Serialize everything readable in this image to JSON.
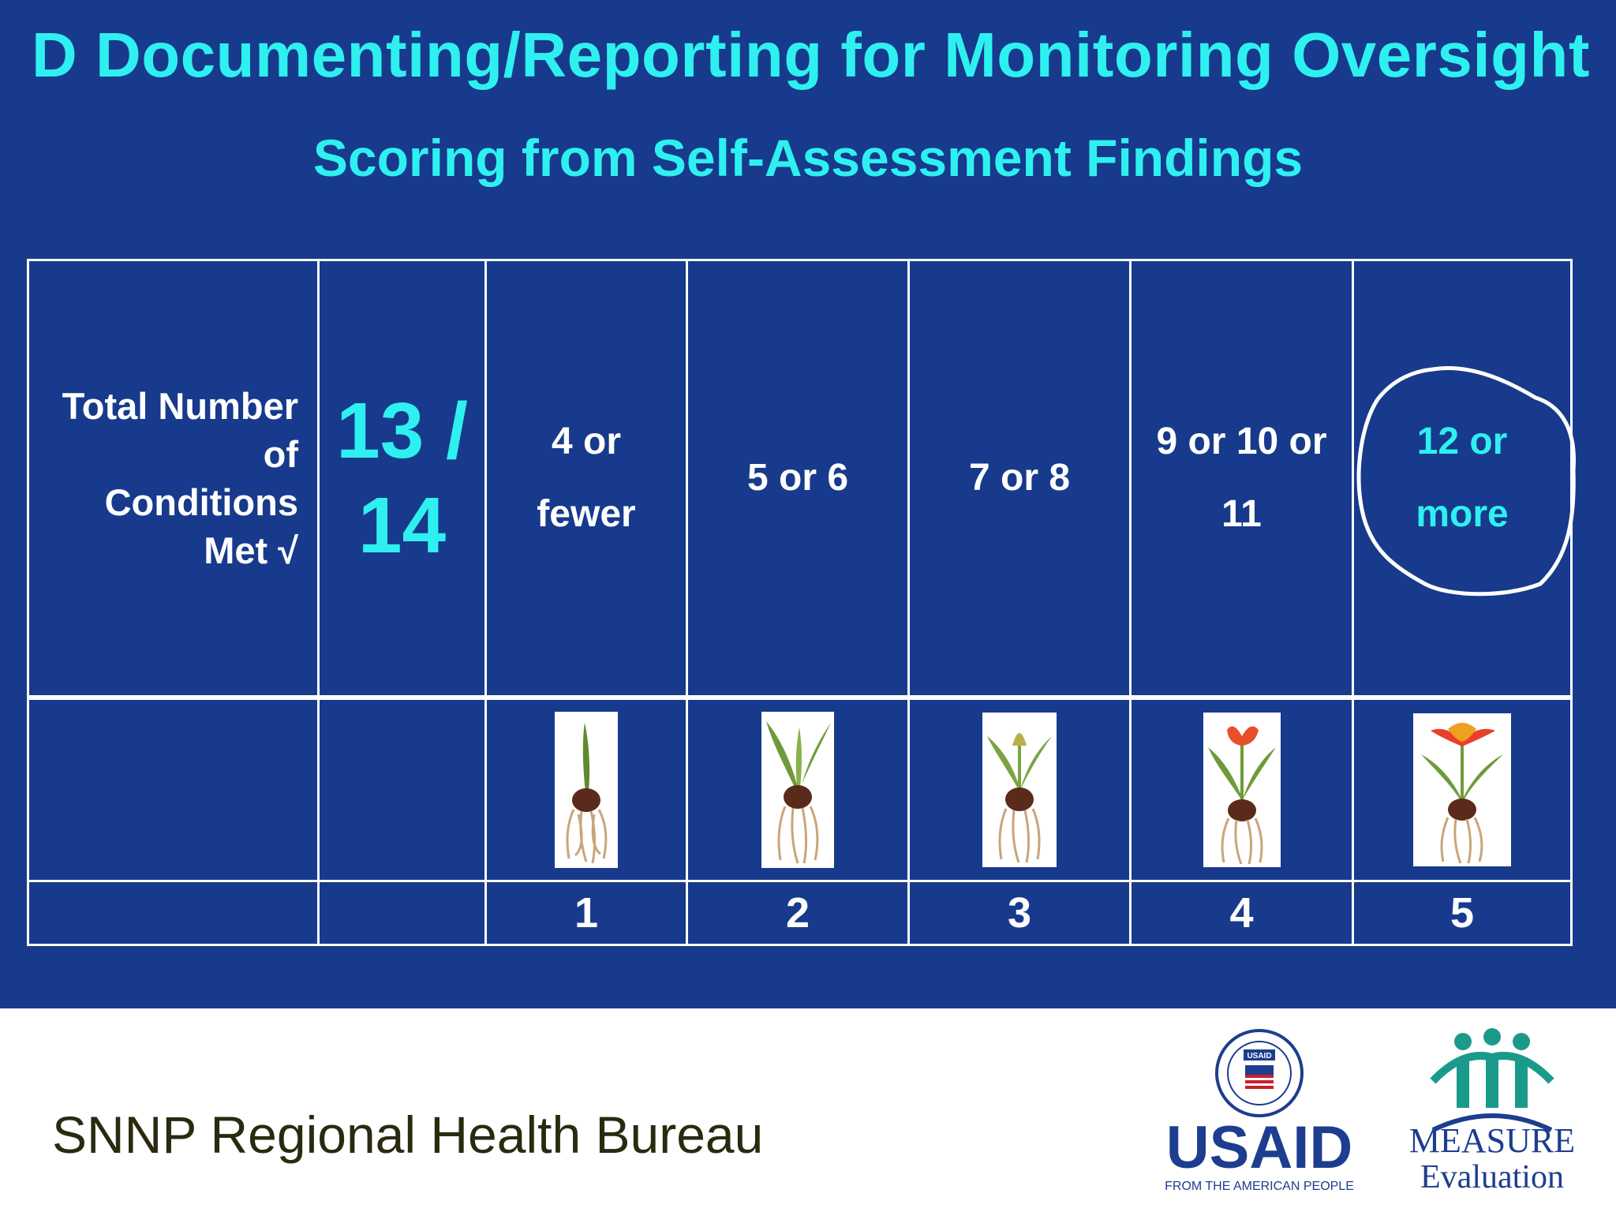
{
  "slide": {
    "title": "D  Documenting/Reporting for Monitoring Oversight",
    "subtitle": "Scoring from Self-Assessment Findings",
    "colors": {
      "background": "#173a8c",
      "accent": "#2ff0f0",
      "text": "#ffffff"
    }
  },
  "table": {
    "label": [
      "Total Number",
      "of",
      "Conditions",
      "Met √"
    ],
    "result": [
      "13 /",
      "14"
    ],
    "ranges": [
      {
        "lines": [
          "4 or",
          "fewer"
        ],
        "score": "1",
        "plant_icon": "bulb-sprout-icon",
        "selected": false
      },
      {
        "lines": [
          "5 or 6"
        ],
        "score": "2",
        "plant_icon": "bulb-leaves-icon",
        "selected": false
      },
      {
        "lines": [
          "7 or 8"
        ],
        "score": "3",
        "plant_icon": "bulb-bud-icon",
        "selected": false
      },
      {
        "lines": [
          "9 or 10 or",
          "11"
        ],
        "score": "4",
        "plant_icon": "tulip-opening-icon",
        "selected": false
      },
      {
        "lines": [
          "12 or",
          "more"
        ],
        "score": "5",
        "plant_icon": "tulip-bloom-icon",
        "selected": true
      }
    ]
  },
  "footer": {
    "organization": "SNNP Regional Health Bureau",
    "usaid": {
      "name": "USAID",
      "tagline": "FROM THE AMERICAN PEOPLE",
      "seal_text": "USAID"
    },
    "measure": {
      "name": "MEASURE",
      "sub": "Evaluation"
    }
  }
}
